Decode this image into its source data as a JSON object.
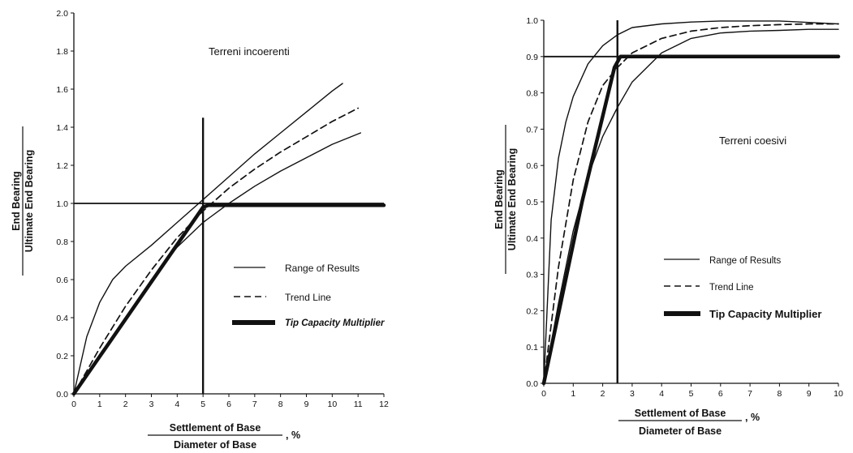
{
  "chart_data": [
    {
      "type": "line",
      "annotation": "Terreni incoerenti",
      "ylabel_numerator": "End Bearing",
      "ylabel_denominator": "Ultimate End Bearing",
      "xlabel_numerator": "Settlement of Base",
      "xlabel_denominator": "Diameter of Base",
      "xlabel_unit": ", %",
      "xlim": [
        0,
        12
      ],
      "ylim": [
        0,
        2.0
      ],
      "x_ticks": [
        "0",
        "1",
        "2",
        "3",
        "4",
        "5",
        "6",
        "7",
        "8",
        "9",
        "10",
        "11",
        "12"
      ],
      "y_ticks": [
        "0.0",
        "0.2",
        "0.4",
        "0.6",
        "0.8",
        "1.0",
        "1.2",
        "1.4",
        "1.6",
        "1.8",
        "2.0"
      ],
      "legend": {
        "range": "Range of Results",
        "trend": "Trend Line",
        "tip": "Tip Capacity Multiplier"
      },
      "reference_lines": {
        "x": 5,
        "y": 1.0,
        "x_top": 1.45
      },
      "series": [
        {
          "role": "range-upper",
          "x": [
            0,
            0.5,
            1,
            1.5,
            2,
            3,
            4,
            5,
            6,
            7,
            8,
            9,
            10,
            10.4
          ],
          "y": [
            0,
            0.3,
            0.48,
            0.6,
            0.67,
            0.78,
            0.9,
            1.02,
            1.14,
            1.26,
            1.37,
            1.48,
            1.59,
            1.63
          ]
        },
        {
          "role": "trend",
          "x": [
            0,
            1,
            2,
            3,
            4,
            5,
            6,
            7,
            8,
            9,
            10,
            11
          ],
          "y": [
            0,
            0.24,
            0.46,
            0.65,
            0.82,
            0.96,
            1.08,
            1.18,
            1.27,
            1.35,
            1.43,
            1.5
          ]
        },
        {
          "role": "range-lower",
          "x": [
            0,
            1,
            2,
            3,
            4,
            5,
            6,
            7,
            8,
            9,
            10,
            11.1
          ],
          "y": [
            0,
            0.2,
            0.4,
            0.6,
            0.77,
            0.9,
            1.0,
            1.09,
            1.17,
            1.24,
            1.31,
            1.37
          ]
        },
        {
          "role": "tip",
          "x": [
            0,
            5,
            5.2,
            12
          ],
          "y": [
            0,
            0.98,
            0.99,
            0.99
          ]
        }
      ]
    },
    {
      "type": "line",
      "annotation": "Terreni coesivi",
      "ylabel_numerator": "End Bearing",
      "ylabel_denominator": "Ultimate End Bearing",
      "xlabel_numerator": "Settlement of Base",
      "xlabel_denominator": "Diameter of Base",
      "xlabel_unit": ", %",
      "xlim": [
        0,
        10
      ],
      "ylim": [
        0,
        1.0
      ],
      "x_ticks": [
        "0",
        "1",
        "2",
        "3",
        "4",
        "5",
        "6",
        "7",
        "8",
        "9",
        "10"
      ],
      "y_ticks": [
        "0.0",
        "0.1",
        "0.2",
        "0.3",
        "0.4",
        "0.5",
        "0.6",
        "0.7",
        "0.8",
        "0.9",
        "1.0"
      ],
      "legend": {
        "range": "Range of Results",
        "trend": "Trend Line",
        "tip": "Tip Capacity Multiplier"
      },
      "reference_lines": {
        "x": 2.5,
        "y": 0.9,
        "x_top": 1.0
      },
      "series": [
        {
          "role": "range-upper",
          "x": [
            0,
            0.25,
            0.5,
            0.75,
            1,
            1.5,
            2,
            2.5,
            3,
            4,
            5,
            6,
            8,
            10
          ],
          "y": [
            0,
            0.45,
            0.62,
            0.72,
            0.79,
            0.88,
            0.93,
            0.96,
            0.98,
            0.99,
            0.995,
            0.998,
            0.998,
            0.99
          ]
        },
        {
          "role": "trend",
          "x": [
            0,
            0.5,
            1,
            1.5,
            2,
            2.5,
            3,
            4,
            5,
            6,
            7,
            8,
            9,
            10
          ],
          "y": [
            0,
            0.32,
            0.56,
            0.72,
            0.82,
            0.87,
            0.91,
            0.95,
            0.97,
            0.98,
            0.985,
            0.988,
            0.99,
            0.99
          ]
        },
        {
          "role": "range-lower",
          "x": [
            0,
            0.5,
            1,
            1.5,
            2,
            2.5,
            3,
            4,
            5,
            6,
            7,
            8,
            9,
            10
          ],
          "y": [
            0,
            0.22,
            0.42,
            0.57,
            0.68,
            0.76,
            0.83,
            0.91,
            0.95,
            0.965,
            0.97,
            0.972,
            0.975,
            0.975
          ]
        },
        {
          "role": "tip",
          "x": [
            0,
            1.3,
            2.4,
            2.6,
            10
          ],
          "y": [
            0,
            0.5,
            0.87,
            0.9,
            0.9
          ]
        }
      ]
    }
  ]
}
